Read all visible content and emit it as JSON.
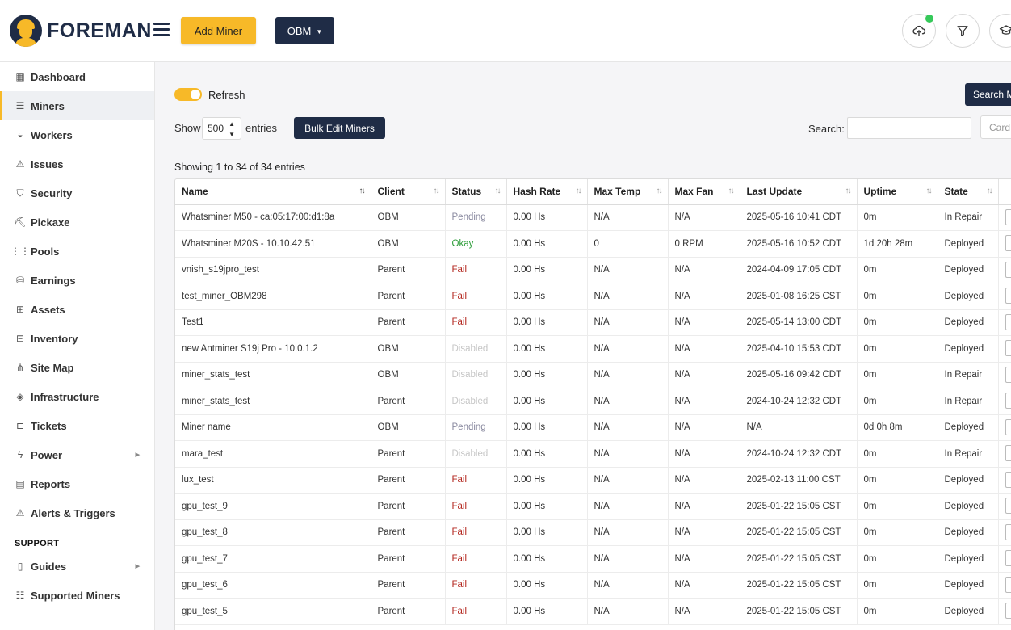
{
  "header": {
    "logo_text": "FOREMAN",
    "add_miner_label": "Add Miner",
    "client_select_label": "OBM",
    "icons": [
      "cloud-upload-icon",
      "filter-icon",
      "graduation-cap-icon"
    ],
    "accent_color": "#f7b928",
    "primary_color": "#1f2c46"
  },
  "sidebar": {
    "items": [
      {
        "label": "Dashboard",
        "icon": "dashboard-icon",
        "glyph": "▦"
      },
      {
        "label": "Miners",
        "icon": "server-icon",
        "glyph": "☰",
        "active": true
      },
      {
        "label": "Workers",
        "icon": "helmet-icon",
        "glyph": "◒"
      },
      {
        "label": "Issues",
        "icon": "warning-icon",
        "glyph": "⚠"
      },
      {
        "label": "Security",
        "icon": "shield-icon",
        "glyph": "⛉"
      },
      {
        "label": "Pickaxe",
        "icon": "pickaxe-icon",
        "glyph": "⛏"
      },
      {
        "label": "Pools",
        "icon": "pools-icon",
        "glyph": "⋮⋮"
      },
      {
        "label": "Earnings",
        "icon": "earnings-icon",
        "glyph": "⛁"
      },
      {
        "label": "Assets",
        "icon": "chip-icon",
        "glyph": "⊞"
      },
      {
        "label": "Inventory",
        "icon": "inventory-icon",
        "glyph": "⊟"
      },
      {
        "label": "Site Map",
        "icon": "sitemap-icon",
        "glyph": "⋔"
      },
      {
        "label": "Infrastructure",
        "icon": "layers-icon",
        "glyph": "◈"
      },
      {
        "label": "Tickets",
        "icon": "ticket-icon",
        "glyph": "⊏"
      },
      {
        "label": "Power",
        "icon": "bolt-icon",
        "glyph": "ϟ",
        "has_arrow": true
      },
      {
        "label": "Reports",
        "icon": "report-icon",
        "glyph": "▤"
      },
      {
        "label": "Alerts & Triggers",
        "icon": "alert-icon",
        "glyph": "⚠"
      }
    ],
    "support_heading": "SUPPORT",
    "support_items": [
      {
        "label": "Guides",
        "icon": "book-icon",
        "glyph": "▯",
        "has_arrow": true
      },
      {
        "label": "Supported Miners",
        "icon": "list-icon",
        "glyph": "☷"
      }
    ]
  },
  "main": {
    "refresh_label": "Refresh",
    "search_miners_label": "Search Miners",
    "show_label": "Show",
    "show_value": "500",
    "entries_label": "entries",
    "bulk_edit_label": "Bulk Edit Miners",
    "search_label": "Search:",
    "search_value": "",
    "card_placeholder": "Card",
    "showing_text": "Showing 1 to 34 of 34 entries"
  },
  "table": {
    "columns": [
      "Name",
      "Client",
      "Status",
      "Hash Rate",
      "Max Temp",
      "Max Fan",
      "Last Update",
      "Uptime",
      "State"
    ],
    "rows": [
      [
        "Whatsminer M50 - ca:05:17:00:d1:8a",
        "OBM",
        "Pending",
        "0.00 Hs",
        "N/A",
        "N/A",
        "2025-05-16 10:41 CDT",
        "0m",
        "In Repair"
      ],
      [
        "Whatsminer M20S - 10.10.42.51",
        "OBM",
        "Okay",
        "0.00 Hs",
        "0",
        "0 RPM",
        "2025-05-16 10:52 CDT",
        "1d 20h 28m",
        "Deployed"
      ],
      [
        "vnish_s19jpro_test",
        "Parent",
        "Fail",
        "0.00 Hs",
        "N/A",
        "N/A",
        "2024-04-09 17:05 CDT",
        "0m",
        "Deployed"
      ],
      [
        "test_miner_OBM298",
        "Parent",
        "Fail",
        "0.00 Hs",
        "N/A",
        "N/A",
        "2025-01-08 16:25 CST",
        "0m",
        "Deployed"
      ],
      [
        "Test1",
        "Parent",
        "Fail",
        "0.00 Hs",
        "N/A",
        "N/A",
        "2025-05-14 13:00 CDT",
        "0m",
        "Deployed"
      ],
      [
        "new Antminer S19j Pro - 10.0.1.2",
        "OBM",
        "Disabled",
        "0.00 Hs",
        "N/A",
        "N/A",
        "2025-04-10 15:53 CDT",
        "0m",
        "Deployed"
      ],
      [
        "miner_stats_test",
        "OBM",
        "Disabled",
        "0.00 Hs",
        "N/A",
        "N/A",
        "2025-05-16 09:42 CDT",
        "0m",
        "In Repair"
      ],
      [
        "miner_stats_test",
        "Parent",
        "Disabled",
        "0.00 Hs",
        "N/A",
        "N/A",
        "2024-10-24 12:32 CDT",
        "0m",
        "In Repair"
      ],
      [
        "Miner name",
        "OBM",
        "Pending",
        "0.00 Hs",
        "N/A",
        "N/A",
        "N/A",
        "0d 0h 8m",
        "Deployed"
      ],
      [
        "mara_test",
        "Parent",
        "Disabled",
        "0.00 Hs",
        "N/A",
        "N/A",
        "2024-10-24 12:32 CDT",
        "0m",
        "In Repair"
      ],
      [
        "lux_test",
        "Parent",
        "Fail",
        "0.00 Hs",
        "N/A",
        "N/A",
        "2025-02-13 11:00 CST",
        "0m",
        "Deployed"
      ],
      [
        "gpu_test_9",
        "Parent",
        "Fail",
        "0.00 Hs",
        "N/A",
        "N/A",
        "2025-01-22 15:05 CST",
        "0m",
        "Deployed"
      ],
      [
        "gpu_test_8",
        "Parent",
        "Fail",
        "0.00 Hs",
        "N/A",
        "N/A",
        "2025-01-22 15:05 CST",
        "0m",
        "Deployed"
      ],
      [
        "gpu_test_7",
        "Parent",
        "Fail",
        "0.00 Hs",
        "N/A",
        "N/A",
        "2025-01-22 15:05 CST",
        "0m",
        "Deployed"
      ],
      [
        "gpu_test_6",
        "Parent",
        "Fail",
        "0.00 Hs",
        "N/A",
        "N/A",
        "2025-01-22 15:05 CST",
        "0m",
        "Deployed"
      ],
      [
        "gpu_test_5",
        "Parent",
        "Fail",
        "0.00 Hs",
        "N/A",
        "N/A",
        "2025-01-22 15:05 CST",
        "0m",
        "Deployed"
      ]
    ]
  }
}
